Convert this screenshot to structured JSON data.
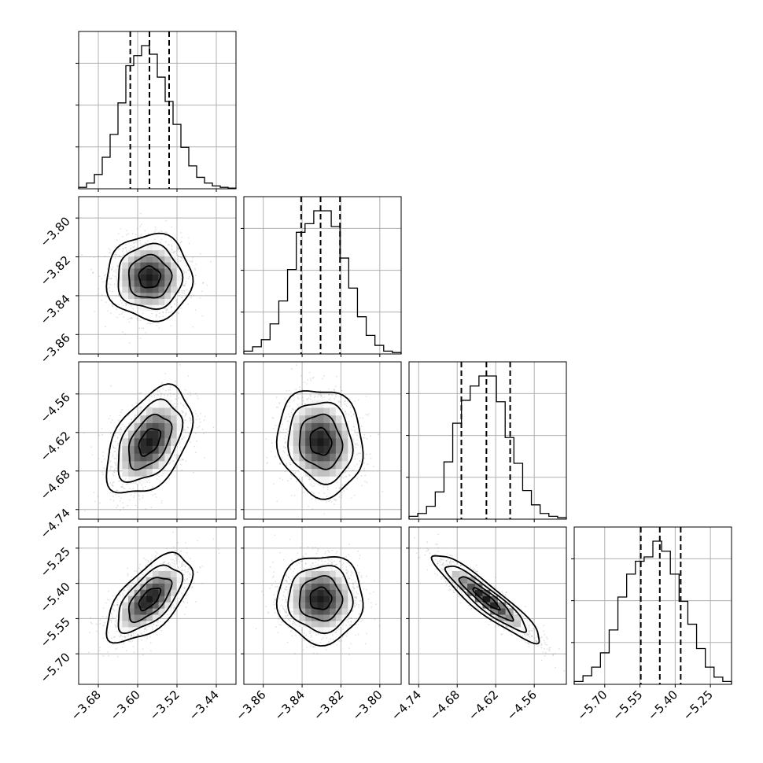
{
  "chart_data": {
    "type": "corner",
    "params": [
      {
        "ticks": [
          -3.68,
          -3.6,
          -3.52,
          -3.44
        ],
        "tick_labels": [
          "−3.68",
          "−3.60",
          "−3.52",
          "−3.44"
        ],
        "range": [
          -3.72,
          -3.4
        ],
        "quantiles": [
          -3.615,
          -3.576,
          -3.536
        ]
      },
      {
        "ticks": [
          -3.86,
          -3.84,
          -3.82,
          -3.8
        ],
        "tick_labels": [
          "−3.86",
          "−3.84",
          "−3.82",
          "−3.80"
        ],
        "range": [
          -3.87,
          -3.789
        ],
        "quantiles": [
          -3.8405,
          -3.8305,
          -3.8205
        ]
      },
      {
        "ticks": [
          -4.74,
          -4.68,
          -4.62,
          -4.56
        ],
        "tick_labels": [
          "−4.74",
          "−4.68",
          "−4.62",
          "−4.56"
        ],
        "range": [
          -4.755,
          -4.51
        ],
        "quantiles": [
          -4.6735,
          -4.6345,
          -4.5975
        ]
      },
      {
        "ticks": [
          -5.7,
          -5.55,
          -5.4,
          -5.25
        ],
        "tick_labels": [
          "−5.70",
          "−5.55",
          "−5.40",
          "−5.25"
        ],
        "range": [
          -5.83,
          -5.16
        ],
        "quantiles": [
          -5.5465,
          -5.4655,
          -5.3765
        ]
      }
    ],
    "histograms": [
      [
        0.01,
        0.04,
        0.1,
        0.22,
        0.38,
        0.6,
        0.86,
        0.93,
        1.0,
        0.94,
        0.78,
        0.61,
        0.45,
        0.29,
        0.16,
        0.08,
        0.04,
        0.02,
        0.01,
        0.005
      ],
      [
        0.02,
        0.05,
        0.1,
        0.21,
        0.37,
        0.59,
        0.85,
        0.91,
        1.0,
        1.0,
        0.89,
        0.67,
        0.46,
        0.26,
        0.13,
        0.06,
        0.02,
        0.01
      ],
      [
        0.02,
        0.04,
        0.09,
        0.19,
        0.4,
        0.67,
        0.83,
        0.93,
        1.0,
        1.0,
        0.82,
        0.57,
        0.39,
        0.2,
        0.1,
        0.04,
        0.02,
        0.01
      ],
      [
        0.02,
        0.06,
        0.12,
        0.22,
        0.38,
        0.61,
        0.77,
        0.86,
        0.89,
        1.0,
        0.93,
        0.77,
        0.58,
        0.42,
        0.25,
        0.12,
        0.05,
        0.02
      ]
    ],
    "correlations": {
      "1,0": 0.0,
      "2,0": 0.45,
      "2,1": -0.1,
      "3,0": 0.62,
      "3,1": 0.0,
      "3,2": -0.92
    },
    "grid": true
  }
}
